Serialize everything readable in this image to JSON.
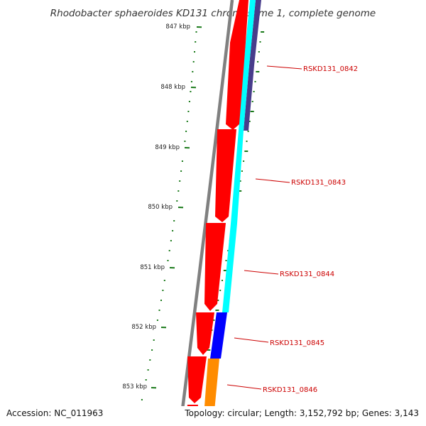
{
  "title": "Rhodobacter sphaeroides KD131 chromosome 1, complete genome",
  "footer": {
    "accession": "Accession: NC_011963",
    "topology": "Topology: circular; Length: 3,152,792 bp; Genes: 3,143"
  },
  "ticks": [
    "847 kbp",
    "848 kbp",
    "849 kbp",
    "850 kbp",
    "851 kbp",
    "852 kbp",
    "853 kbp"
  ],
  "gene_labels": [
    "RSKD131_0842",
    "RSKD131_0843",
    "RSKD131_0844",
    "RSKD131_0845",
    "RSKD131_0846"
  ],
  "colors": {
    "gc_skew_dots": "#1a7a1a",
    "backbone": "#808080",
    "forward_strand_arrows": "#ff0000",
    "cyan_track": "#00ffff",
    "dark_purple_track": "#483d8b",
    "blue_track": "#0000ff",
    "orange_track": "#ff8c00",
    "gene_label_text": "#cc0000"
  }
}
